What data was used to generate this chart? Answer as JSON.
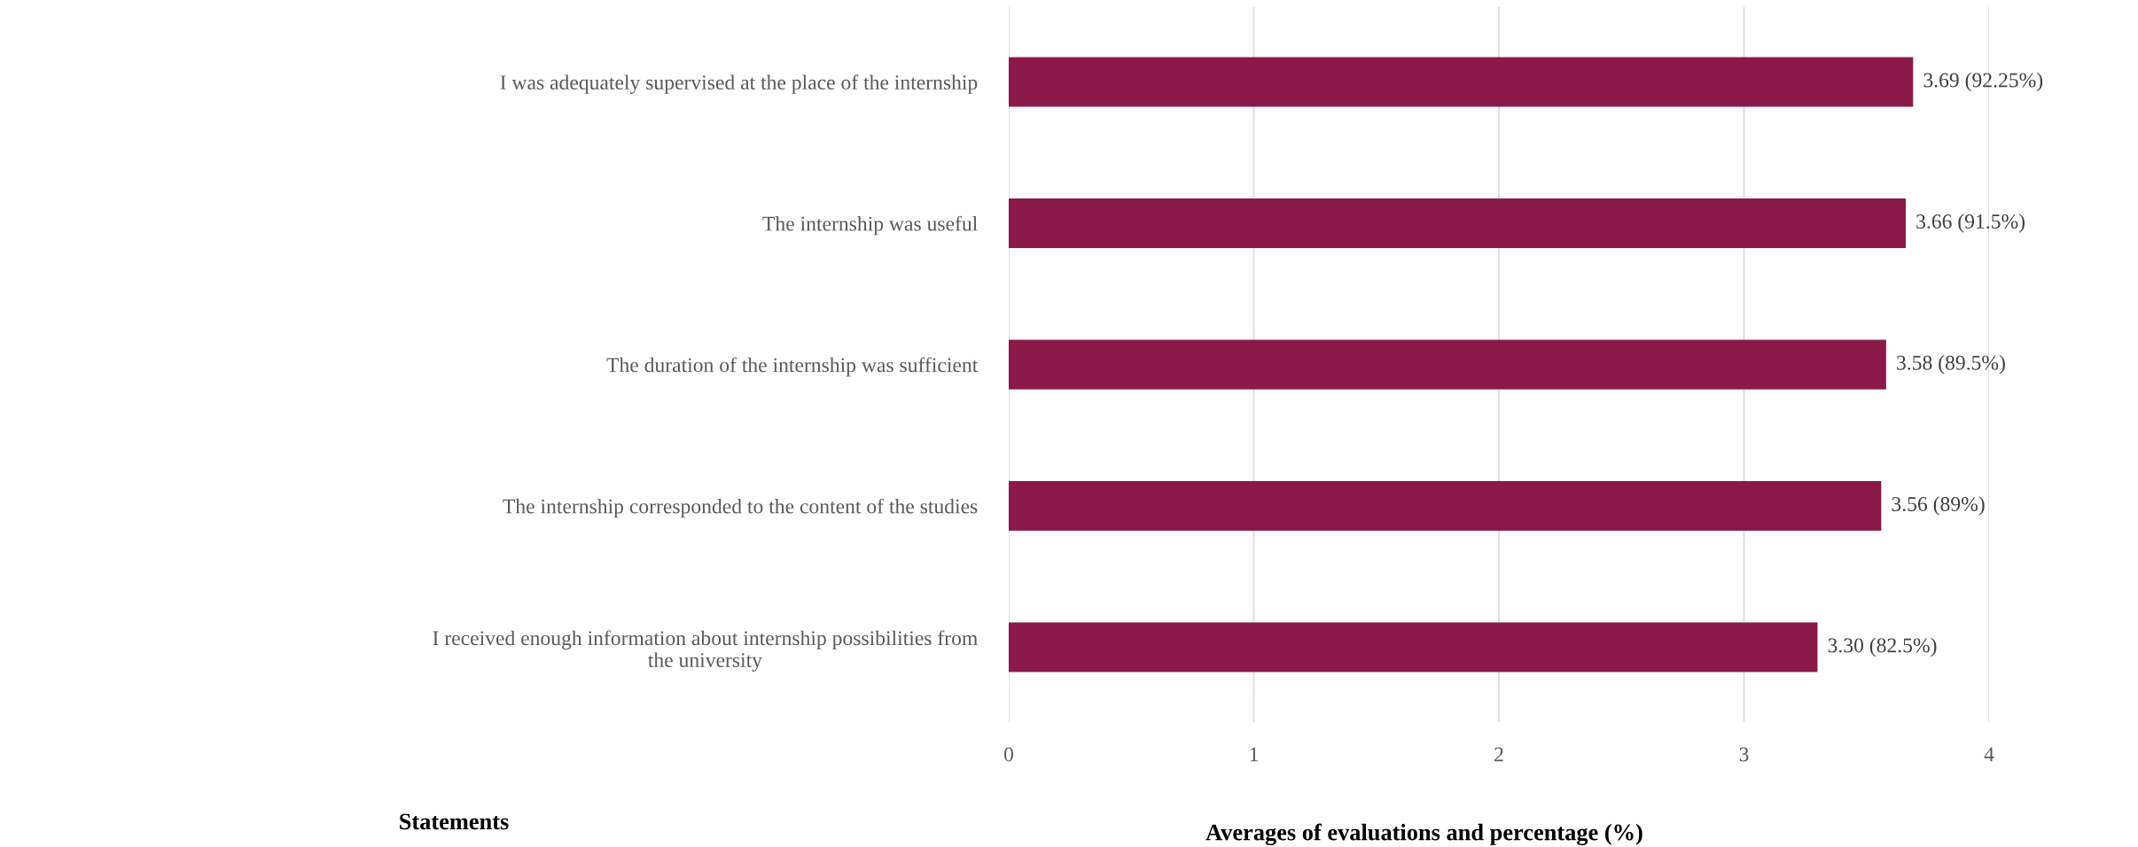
{
  "chart_data": {
    "type": "bar",
    "orientation": "horizontal",
    "categories": [
      "I was adequately supervised at the place of the internship",
      "The internship was useful",
      "The duration of the internship was sufficient",
      "The internship corresponded to the content of the studies",
      "I received enough information about internship possibilities from\nthe university"
    ],
    "values": [
      3.69,
      3.66,
      3.58,
      3.56,
      3.3
    ],
    "value_labels": [
      "3.69 (92.25%)",
      "3.66 (91.5%)",
      "3.58 (89.5%)",
      "3.56 (89%)",
      "3.30 (82.5%)"
    ],
    "color": "#8b1a4a",
    "xlim": [
      0,
      4
    ],
    "xticks": [
      0,
      1,
      2,
      3,
      4
    ],
    "xlabel": "Averages of evaluations and percentage (%)",
    "ylabel": "Statements",
    "grid": "x"
  }
}
